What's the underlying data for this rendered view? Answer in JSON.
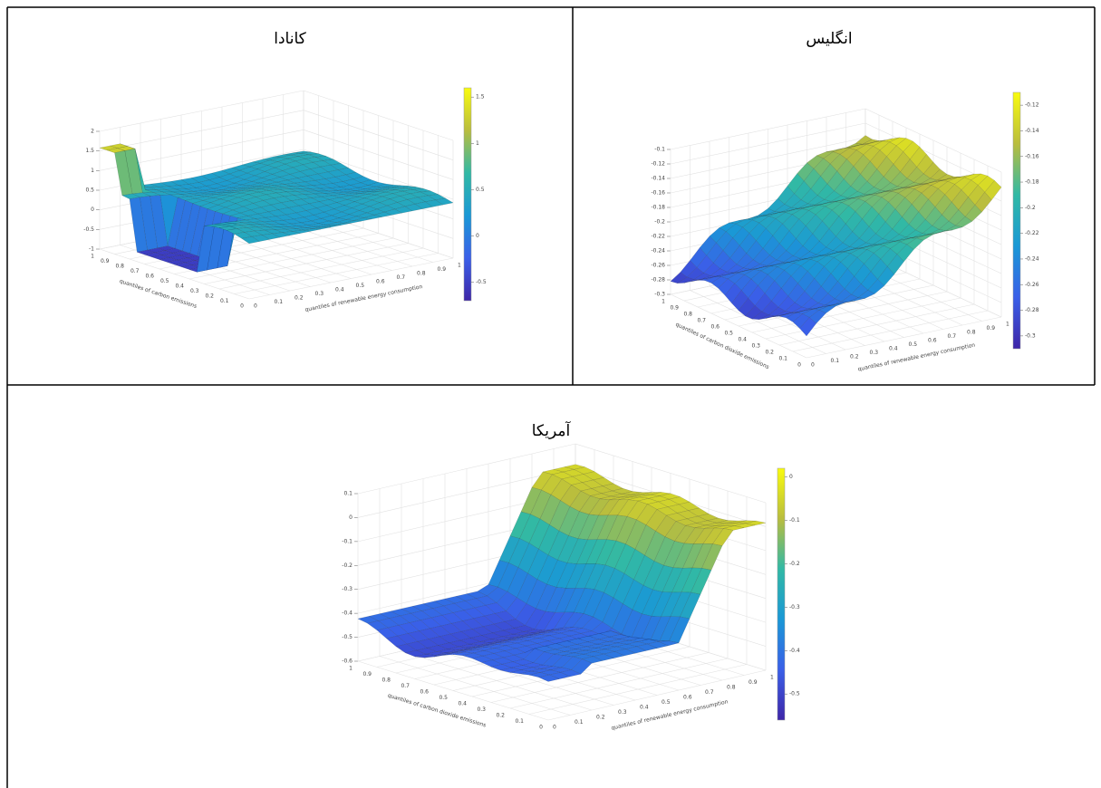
{
  "cells": [
    {
      "title": "کانادا",
      "xlabel": "quantiles of carbon emissions",
      "ylabel": "quantiles of renewable energy consumption",
      "xticks": [
        0,
        0.1,
        0.2,
        0.3,
        0.4,
        0.5,
        0.6,
        0.7,
        0.8,
        0.9,
        1
      ],
      "yticks": [
        0,
        0.1,
        0.2,
        0.3,
        0.4,
        0.5,
        0.6,
        0.7,
        0.8,
        0.9,
        1
      ],
      "zlim": [
        -1,
        2
      ],
      "zticks": [
        -1,
        -0.5,
        0,
        0.5,
        1,
        1.5,
        2
      ],
      "clim": [
        -0.7,
        1.6
      ],
      "cticks": [
        -0.5,
        0,
        0.5,
        1,
        1.5
      ]
    },
    {
      "title": "انگلیس",
      "xlabel": "quantiles of carbon dioxide emissions",
      "ylabel": "quantiles of renewable energy consumption",
      "xticks": [
        0,
        0.1,
        0.2,
        0.3,
        0.4,
        0.5,
        0.6,
        0.7,
        0.8,
        0.9,
        1
      ],
      "yticks": [
        0,
        0.1,
        0.2,
        0.3,
        0.4,
        0.5,
        0.6,
        0.7,
        0.8,
        0.9,
        1
      ],
      "zlim": [
        -0.3,
        -0.1
      ],
      "zticks": [
        -0.3,
        -0.28,
        -0.26,
        -0.24,
        -0.22,
        -0.2,
        -0.18,
        -0.16,
        -0.14,
        -0.12,
        -0.1
      ],
      "clim": [
        -0.31,
        -0.11
      ],
      "cticks": [
        -0.3,
        -0.28,
        -0.26,
        -0.24,
        -0.22,
        -0.2,
        -0.18,
        -0.16,
        -0.14,
        -0.12
      ]
    },
    {
      "title": "آمریکا",
      "xlabel": "quantiles of carbon dioxide emissions",
      "ylabel": "quantiles of renewable energy consumption",
      "xticks": [
        0,
        0.1,
        0.2,
        0.3,
        0.4,
        0.5,
        0.6,
        0.7,
        0.8,
        0.9,
        1
      ],
      "yticks": [
        0,
        0.1,
        0.2,
        0.3,
        0.4,
        0.5,
        0.6,
        0.7,
        0.8,
        0.9,
        1
      ],
      "zlim": [
        -0.6,
        0.1
      ],
      "zticks": [
        -0.6,
        -0.5,
        -0.4,
        -0.3,
        -0.2,
        -0.1,
        0,
        0.1
      ],
      "clim": [
        -0.56,
        0.02
      ],
      "cticks": [
        -0.5,
        -0.4,
        -0.3,
        -0.2,
        -0.1,
        0
      ]
    }
  ]
}
